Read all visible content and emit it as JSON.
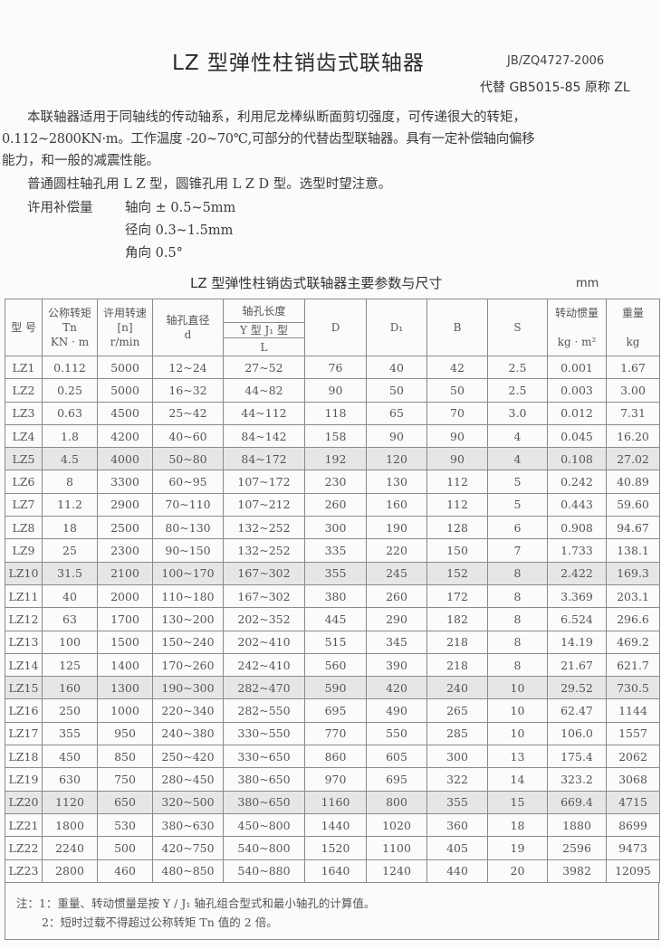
{
  "header": {
    "title": "LZ 型弹性柱销齿式联轴器",
    "standard": "JB/ZQ4727-2006",
    "replaces": "代替 GB5015-85 原称 ZL"
  },
  "intro": {
    "line1": "本联轴器适用于同轴线的传动轴系，利用尼龙棒纵断面剪切强度，可传递很大的转矩，",
    "line2": "0.112~2800KN·m。工作温度 -20~70℃,可部分的代替齿型联轴器。具有一定补偿轴向偏移",
    "line3": "能力，和一般的减震性能。",
    "line4": "普通圆柱轴孔用 L Z 型，圆锥孔用 L Z D 型。选型时望注意。",
    "comp_label": "许用补偿量",
    "comp_axial": "轴向 ± 0.5~5mm",
    "comp_radial": "径向 0.3~1.5mm",
    "comp_angular": "角向 0.5°"
  },
  "table": {
    "title": "LZ 型弹性柱销齿式联轴器主要参数与尺寸",
    "unit": "mm",
    "headers": {
      "model": "型 号",
      "torque": "公称转矩",
      "torque_sym": "Tn",
      "torque_unit": "KN · m",
      "speed": "许用转速",
      "speed_sym": "[n]",
      "speed_unit": "r/min",
      "bore": "轴孔直径",
      "bore_sym": "d",
      "length": "轴孔长度",
      "length_types": "Y 型   J₁ 型",
      "length_sym": "L",
      "D": "D",
      "D1": "D₁",
      "B": "B",
      "S": "S",
      "inertia": "转动惯量",
      "inertia_unit": "kg · m²",
      "weight": "重量",
      "weight_unit": "kg"
    },
    "rows": [
      [
        "LZ1",
        "0.112",
        "5000",
        "12~24",
        "27~52",
        "76",
        "40",
        "42",
        "2.5",
        "0.001",
        "1.67"
      ],
      [
        "LZ2",
        "0.25",
        "5000",
        "16~32",
        "44~82",
        "90",
        "50",
        "50",
        "2.5",
        "0.003",
        "3.00"
      ],
      [
        "LZ3",
        "0.63",
        "4500",
        "25~42",
        "44~112",
        "118",
        "65",
        "70",
        "3.0",
        "0.012",
        "7.31"
      ],
      [
        "LZ4",
        "1.8",
        "4200",
        "40~60",
        "84~142",
        "158",
        "90",
        "90",
        "4",
        "0.045",
        "16.20"
      ],
      [
        "LZ5",
        "4.5",
        "4000",
        "50~80",
        "84~172",
        "192",
        "120",
        "90",
        "4",
        "0.108",
        "27.02"
      ],
      [
        "LZ6",
        "8",
        "3300",
        "60~95",
        "107~172",
        "230",
        "130",
        "112",
        "5",
        "0.242",
        "40.89"
      ],
      [
        "LZ7",
        "11.2",
        "2900",
        "70~110",
        "107~212",
        "260",
        "160",
        "112",
        "5",
        "0.443",
        "59.60"
      ],
      [
        "LZ8",
        "18",
        "2500",
        "80~130",
        "132~252",
        "300",
        "190",
        "128",
        "6",
        "0.908",
        "94.67"
      ],
      [
        "LZ9",
        "25",
        "2300",
        "90~150",
        "132~252",
        "335",
        "220",
        "150",
        "7",
        "1.733",
        "138.1"
      ],
      [
        "LZ10",
        "31.5",
        "2100",
        "100~170",
        "167~302",
        "355",
        "245",
        "152",
        "8",
        "2.422",
        "169.3"
      ],
      [
        "LZ11",
        "40",
        "2000",
        "110~180",
        "167~302",
        "380",
        "260",
        "172",
        "8",
        "3.369",
        "203.1"
      ],
      [
        "LZ12",
        "63",
        "1700",
        "130~200",
        "202~352",
        "445",
        "290",
        "182",
        "8",
        "6.524",
        "296.6"
      ],
      [
        "LZ13",
        "100",
        "1500",
        "150~240",
        "202~410",
        "515",
        "345",
        "218",
        "8",
        "14.19",
        "469.2"
      ],
      [
        "LZ14",
        "125",
        "1400",
        "170~260",
        "242~410",
        "560",
        "390",
        "218",
        "8",
        "21.67",
        "621.7"
      ],
      [
        "LZ15",
        "160",
        "1300",
        "190~300",
        "282~470",
        "590",
        "420",
        "240",
        "10",
        "29.52",
        "730.5"
      ],
      [
        "LZ16",
        "250",
        "1000",
        "220~340",
        "282~550",
        "695",
        "490",
        "265",
        "10",
        "62.47",
        "1144"
      ],
      [
        "LZ17",
        "355",
        "950",
        "240~380",
        "330~550",
        "770",
        "550",
        "285",
        "10",
        "106.0",
        "1557"
      ],
      [
        "LZ18",
        "450",
        "850",
        "250~420",
        "330~650",
        "860",
        "605",
        "300",
        "13",
        "175.4",
        "2062"
      ],
      [
        "LZ19",
        "630",
        "750",
        "280~450",
        "380~650",
        "970",
        "695",
        "322",
        "14",
        "323.2",
        "3068"
      ],
      [
        "LZ20",
        "1120",
        "650",
        "320~500",
        "380~650",
        "1160",
        "800",
        "355",
        "15",
        "669.4",
        "4715"
      ],
      [
        "LZ21",
        "1800",
        "530",
        "380~630",
        "450~800",
        "1440",
        "1020",
        "360",
        "18",
        "1880",
        "8699"
      ],
      [
        "LZ22",
        "2240",
        "500",
        "420~750",
        "540~800",
        "1520",
        "1100",
        "405",
        "19",
        "2596",
        "9473"
      ],
      [
        "LZ23",
        "2800",
        "460",
        "480~850",
        "540~880",
        "1640",
        "1240",
        "440",
        "20",
        "3982",
        "12095"
      ]
    ],
    "shaded_rows": [
      "LZ5",
      "LZ10",
      "LZ15",
      "LZ20"
    ]
  },
  "notes": {
    "note1": "注：1：重量、转动惯量是按 Y / J₁ 轴孔组合型式和最小轴孔的计算值。",
    "note2": "2：短时过载不得超过公称转矩 Tn 值的 2 倍。"
  }
}
